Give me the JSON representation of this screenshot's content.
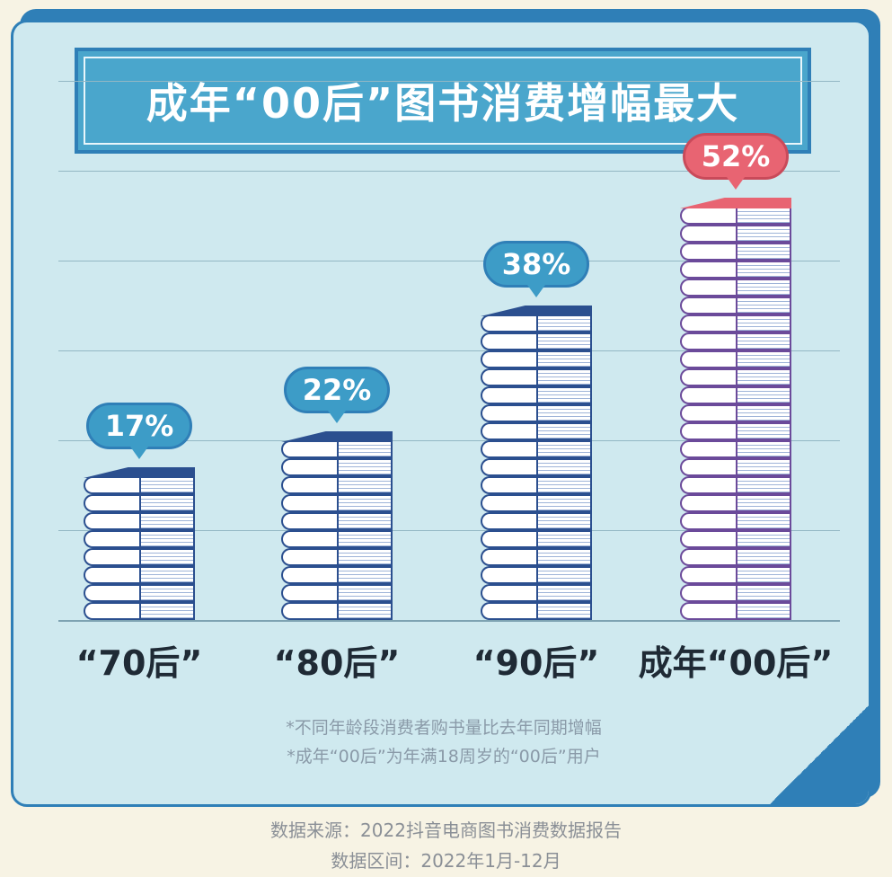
{
  "title": "成年“00后”图书消费增幅最大",
  "notes": [
    "*不同年龄段消费者购书量比去年同期增幅",
    "*成年“00后”为年满18周岁的“00后”用户"
  ],
  "footer": {
    "source": "数据来源：2022抖音电商图书消费数据报告",
    "period": "数据区间：2022年1月-12月"
  },
  "colors": {
    "bubble_default": "#3d9cc7",
    "bubble_highlight": "#e86472",
    "book_cover": "#2b4f8f",
    "book_cover_highlight": "#e86472"
  },
  "chart_data": {
    "type": "bar",
    "categories": [
      "“70后”",
      "“80后”",
      "“90后”",
      "成年“00后”"
    ],
    "values": [
      17,
      22,
      38,
      52
    ],
    "value_labels": [
      "17%",
      "22%",
      "38%",
      "52%"
    ],
    "unit": "%",
    "highlight_index": 3,
    "ylim": [
      0,
      60
    ],
    "grid": true
  }
}
